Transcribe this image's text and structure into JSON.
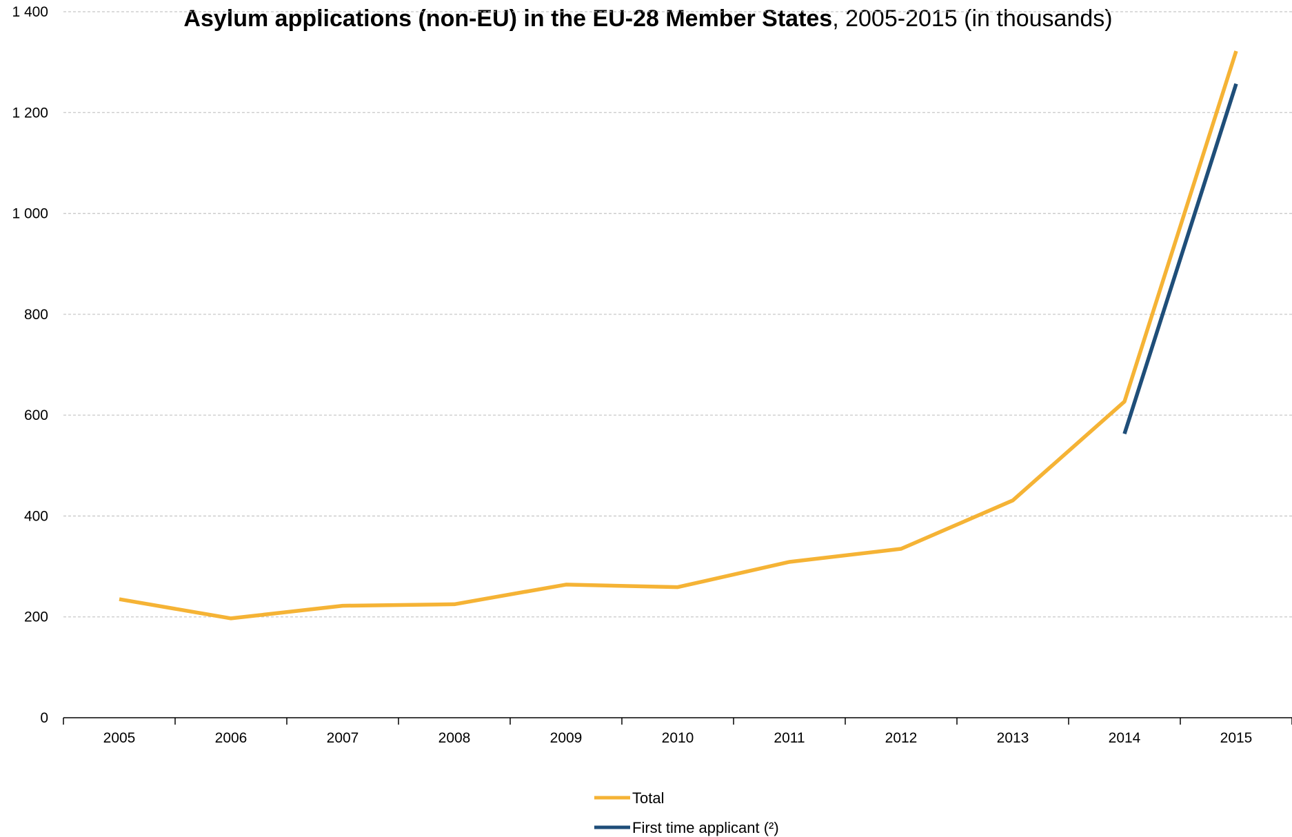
{
  "chart_data": {
    "type": "line",
    "title_bold": "Asylum applications (non-EU) in the EU-28 Member States",
    "title_rest": ", 2005-2015 (in thousands)",
    "xlabel": "",
    "ylabel": "",
    "ylim": [
      0,
      1400
    ],
    "y_ticks": [
      0,
      200,
      400,
      600,
      800,
      1000,
      1200,
      1400
    ],
    "y_tick_labels": [
      "0",
      "200",
      "400",
      "600",
      "800",
      "1 000",
      "1 200",
      "1 400"
    ],
    "categories": [
      "2005",
      "2006",
      "2007",
      "2008",
      "2009",
      "2010",
      "2011",
      "2012",
      "2013",
      "2014",
      "2015"
    ],
    "grid": "horizontal dashed",
    "legend_position": "bottom-center",
    "series": [
      {
        "name": "Total",
        "color": "#f5b335",
        "values": [
          235,
          197,
          222,
          225,
          264,
          259,
          309,
          335,
          431,
          627,
          1322
        ]
      },
      {
        "name": "First time applicant (²)",
        "color": "#1f4e79",
        "values": [
          null,
          null,
          null,
          null,
          null,
          null,
          null,
          null,
          null,
          563,
          1257
        ]
      }
    ]
  }
}
